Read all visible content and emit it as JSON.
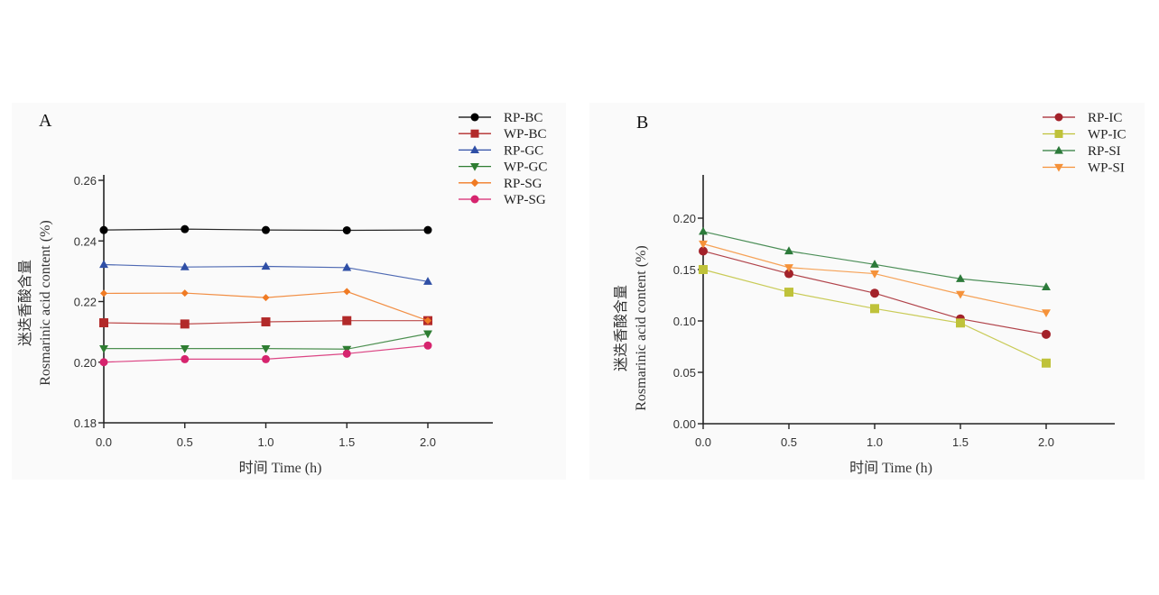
{
  "chart_data": [
    {
      "panel": "A",
      "type": "line",
      "title": "",
      "xlabel": "时间 Time (h)",
      "ylabel_cn": "迷迭香酸含量",
      "ylabel": "Rosmarinic acid content (%)",
      "x": [
        0.0,
        0.5,
        1.0,
        1.5,
        2.0
      ],
      "x_ticks": [
        "0.0",
        "0.5",
        "1.0",
        "1.5",
        "2.0"
      ],
      "y_ticks": [
        "0.18",
        "0.20",
        "0.22",
        "0.24",
        "0.26"
      ],
      "xlim": [
        0.0,
        2.4
      ],
      "ylim": [
        0.18,
        0.26
      ],
      "grid": false,
      "legend_position": "top-right",
      "series": [
        {
          "name": "RP-BC",
          "color": "#000000",
          "marker": "circle",
          "values": [
            0.2436,
            0.2439,
            0.2436,
            0.2435,
            0.2436
          ]
        },
        {
          "name": "WP-BC",
          "color": "#b22a2a",
          "marker": "square",
          "values": [
            0.213,
            0.2126,
            0.2133,
            0.2137,
            0.2137
          ]
        },
        {
          "name": "RP-GC",
          "color": "#2f4fa6",
          "marker": "triangle-up",
          "values": [
            0.2322,
            0.2314,
            0.2316,
            0.2312,
            0.2266
          ]
        },
        {
          "name": "WP-GC",
          "color": "#2e7d32",
          "marker": "triangle-down",
          "values": [
            0.2045,
            0.2045,
            0.2045,
            0.2043,
            0.2094
          ]
        },
        {
          "name": "RP-SG",
          "color": "#f07b24",
          "marker": "diamond",
          "values": [
            0.2227,
            0.2228,
            0.2213,
            0.2233,
            0.2137
          ]
        },
        {
          "name": "WP-SG",
          "color": "#d6246e",
          "marker": "circle",
          "values": [
            0.2,
            0.201,
            0.201,
            0.2028,
            0.2055
          ]
        }
      ]
    },
    {
      "panel": "B",
      "type": "line",
      "title": "",
      "xlabel": "时间 Time (h)",
      "ylabel_cn": "迷迭香酸含量",
      "ylabel": "Rosmarinic acid content (%)",
      "x": [
        0.0,
        0.5,
        1.0,
        1.5,
        2.0
      ],
      "x_ticks": [
        "0.0",
        "0.5",
        "1.0",
        "1.5",
        "2.0"
      ],
      "y_ticks": [
        "0.00",
        "0.05",
        "0.10",
        "0.15",
        "0.20"
      ],
      "xlim": [
        0.0,
        2.4
      ],
      "ylim": [
        0.0,
        0.24
      ],
      "grid": false,
      "legend_position": "top-right",
      "series": [
        {
          "name": "RP-IC",
          "color": "#a3222a",
          "marker": "circle",
          "values": [
            0.168,
            0.146,
            0.127,
            0.102,
            0.087
          ]
        },
        {
          "name": "WP-IC",
          "color": "#bfc23a",
          "marker": "square",
          "values": [
            0.15,
            0.128,
            0.112,
            0.098,
            0.059
          ]
        },
        {
          "name": "RP-SI",
          "color": "#2c7a3a",
          "marker": "triangle-up",
          "values": [
            0.187,
            0.168,
            0.155,
            0.141,
            0.133
          ]
        },
        {
          "name": "WP-SI",
          "color": "#f5923a",
          "marker": "triangle-down",
          "values": [
            0.175,
            0.152,
            0.146,
            0.126,
            0.108
          ]
        }
      ]
    }
  ]
}
